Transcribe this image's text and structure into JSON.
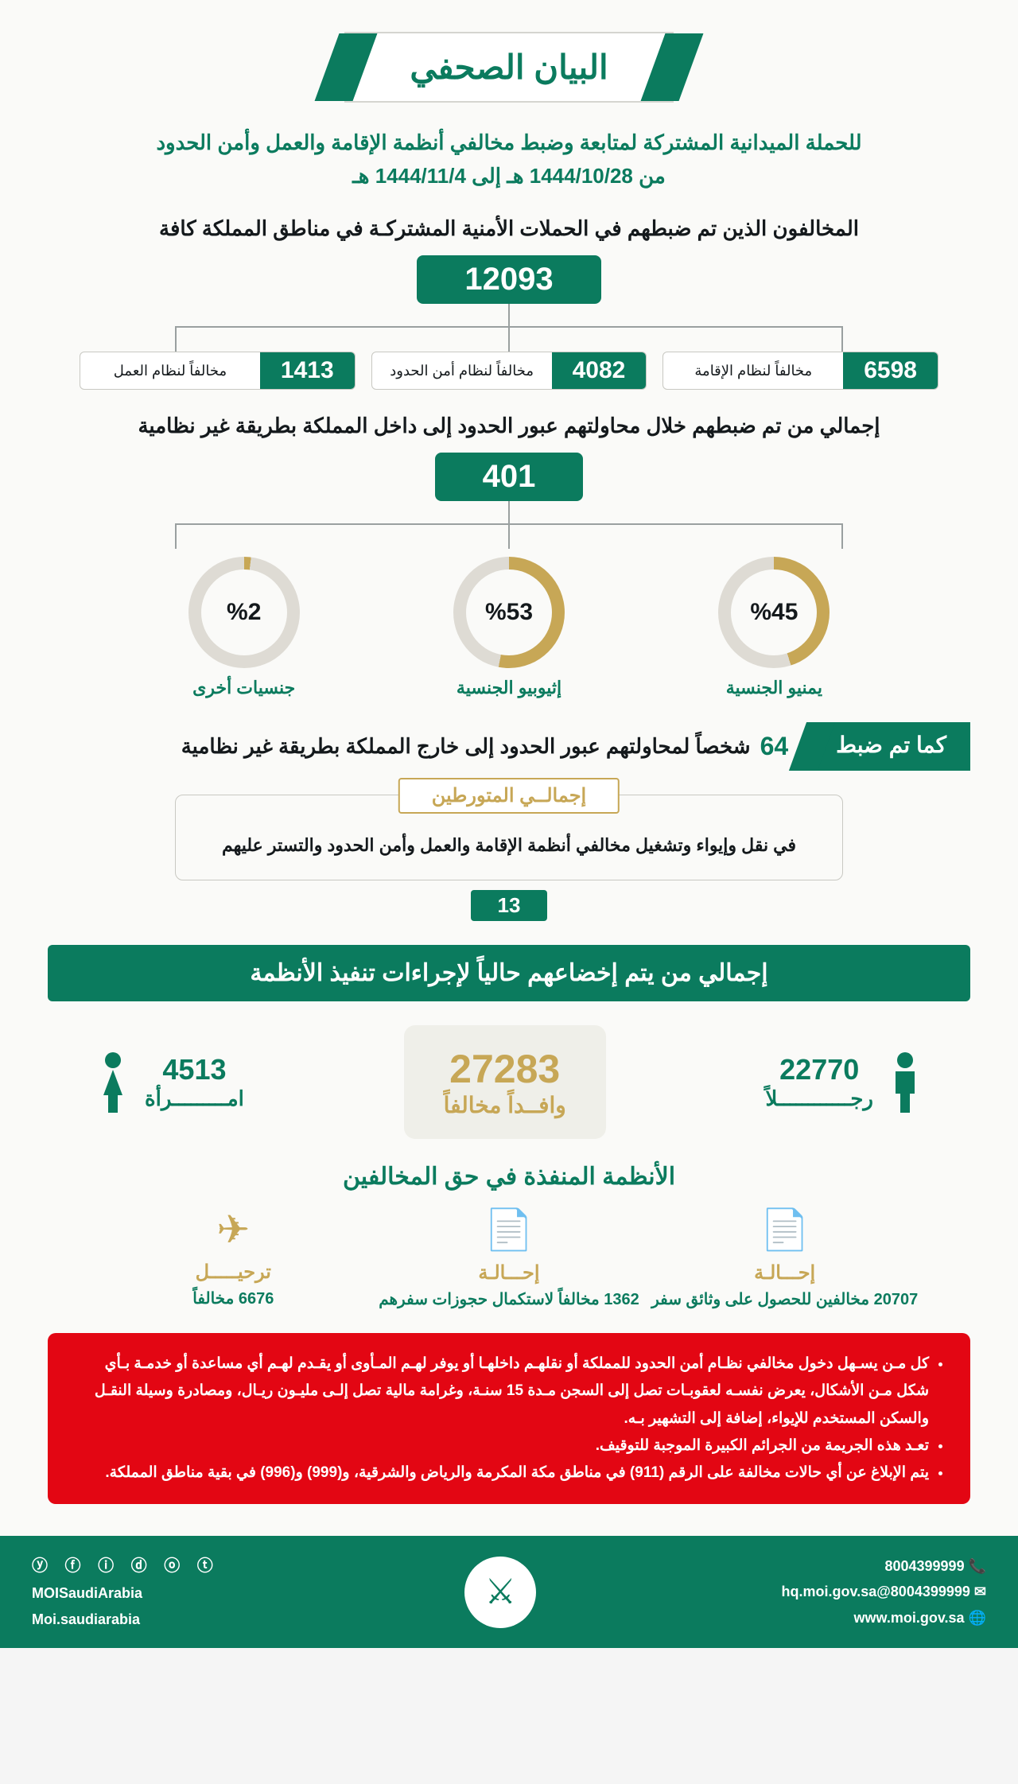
{
  "colors": {
    "primary": "#0b7b5e",
    "gold": "#c7a756",
    "red": "#e30613",
    "dark": "#14191c",
    "bg": "#fafaf8",
    "line": "#9aa0a0",
    "donut_track": "#dedbd4"
  },
  "header": {
    "title": "البيان الصحفي",
    "subtitle_line1": "للحملة الميدانية المشتركة لمتابعة وضبط مخالفي أنظمة الإقامة والعمل وأمن الحدود",
    "subtitle_line2": "من 1444/10/28 هـ إلى 1444/11/4 هـ"
  },
  "violators": {
    "title": "المخالفون الذين تم ضبطهم في الحملات الأمنية المشتركـة في مناطق المملكة كافة",
    "total": "12093",
    "breakdown": [
      {
        "value": "6598",
        "label": "مخالفاً لنظام الإقامة"
      },
      {
        "value": "4082",
        "label": "مخالفاً لنظام أمن الحدود"
      },
      {
        "value": "1413",
        "label": "مخالفاً لنظام العمل"
      }
    ]
  },
  "border_cross": {
    "title": "إجمالي من تم ضبطهم خلال محاولتهم عبور الحدود إلى داخل المملكة بطريقة غير نظامية",
    "total": "401",
    "donuts": [
      {
        "pct": 45,
        "display": "%45",
        "label": "يمنيو الجنسية"
      },
      {
        "pct": 53,
        "display": "%53",
        "label": "إثيوبيو الجنسية"
      },
      {
        "pct": 2,
        "display": "%2",
        "label": "جنسيات أخرى"
      }
    ]
  },
  "outbound": {
    "tag": "كما تم ضبط",
    "num": "64",
    "rest": "شخصاً لمحاولتهم عبور الحدود إلى خارج المملكة بطريقة غير نظامية"
  },
  "involved": {
    "title": "إجمالــي المتورطين",
    "body": "في نقل وإيواء وتشغيل مخالفي أنظمة الإقامة والعمل وأمن الحدود والتستر عليهم",
    "num": "13"
  },
  "procedures": {
    "banner": "إجمالي من يتم إخضاعهم حالياً لإجراءات تنفيذ الأنظمة",
    "men": {
      "num": "22770",
      "label": "رجــــــــــــلاً"
    },
    "center": {
      "num": "27283",
      "label": "وافــداً مخالفاً"
    },
    "women": {
      "num": "4513",
      "label": "امـــــــــرأة"
    }
  },
  "applied": {
    "title": "الأنظمة المنفذة في حق المخالفين",
    "items": [
      {
        "icon": "📄",
        "title": "إحـــالـة",
        "num": "20707",
        "rest": "مخالفين للحصول على وثائق سفر"
      },
      {
        "icon": "📄",
        "title": "إحـــالـة",
        "num": "1362",
        "rest": "مخالفاً لاستكمال حجوزات سفرهم"
      },
      {
        "icon": "✈",
        "title": "ترحيـــــل",
        "num": "6676",
        "rest": "مخالفاً"
      }
    ]
  },
  "warning": {
    "bullets": [
      "كل مـن يسـهل دخول مخالفي نظـام أمن الحدود للمملكة أو نقلهـم داخلهـا أو يوفر لهـم المـأوى أو يقـدم لهـم أي مساعدة أو خدمـة بـأي شكل مـن الأشكال، يعرض نفسـه لعقوبـات تصل إلى السجن مـدة 15 سنـة، وغرامة مالية تصل إلـى مليـون ريـال، ومصادرة وسيلة النقـل والسكن المستخدم للإيواء، إضافة إلى التشهير بـه.",
      "تعـد هذه الجريمة من الجرائم الكبيرة الموجبة للتوقيف.",
      "يتم الإبلاغ عن أي حالات مخالفة على الرقم (911) في مناطق مكة المكرمة والرياض والشرقية، و(999) و(996) في بقية مناطق المملكة."
    ]
  },
  "footer": {
    "phone": "8004399999",
    "email": "8004399999@hq.moi.gov.sa",
    "web": "www.moi.gov.sa",
    "social1": "MOISaudiArabia",
    "social2": "Moi.saudiarabia",
    "icons": "ⓨ ⓕ ⓘ ⓓ ⓞ ⓣ"
  }
}
